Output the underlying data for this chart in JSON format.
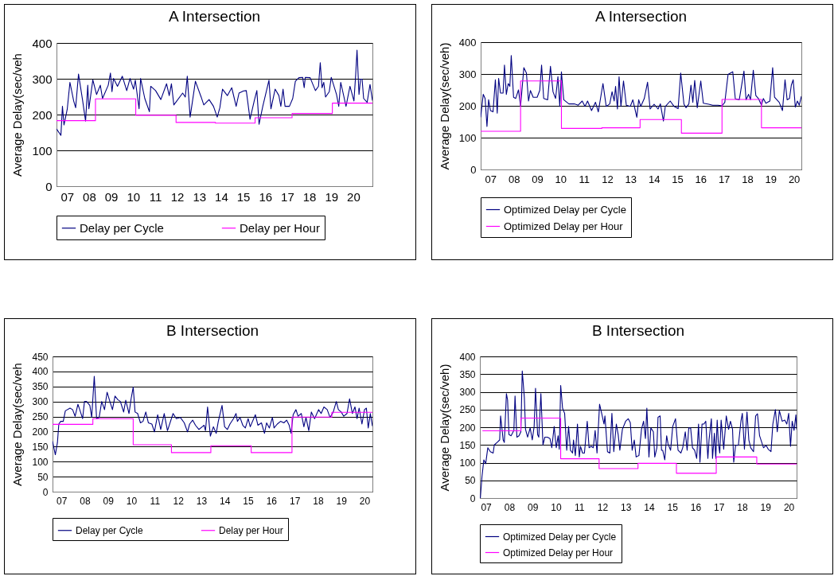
{
  "chart_data": [
    {
      "type": "line",
      "title": "A Intersection",
      "ylabel": "Average Delay(sec/veh",
      "xlim": [
        6.52,
        20.87
      ],
      "xticks": [
        {
          "value": 7,
          "label": "07"
        },
        {
          "value": 8,
          "label": "08"
        },
        {
          "value": 9,
          "label": "09"
        },
        10,
        11,
        12,
        13,
        14,
        15,
        16,
        17,
        18,
        19,
        20
      ],
      "ylim": [
        0,
        400
      ],
      "yticks": [
        0,
        100,
        200,
        300,
        400
      ],
      "grid": "y",
      "legend": "bottom",
      "series": [
        {
          "name": "Delay per Cycle",
          "color": "#000080",
          "x": [
            6.52,
            6.72,
            6.79,
            6.86,
            7.01,
            7.13,
            7.3,
            7.39,
            7.52,
            7.7,
            7.84,
            7.94,
            7.99,
            8.17,
            8.34,
            8.51,
            8.61,
            8.87,
            8.97,
            9.04,
            9.11,
            9.29,
            9.51,
            9.71,
            9.86,
            10.02,
            10.1,
            10.27,
            10.34,
            10.53,
            10.74,
            10.8,
            11.02,
            11.26,
            11.52,
            11.64,
            11.74,
            11.85,
            12.25,
            12.37,
            12.46,
            12.59,
            12.83,
            13.09,
            13.21,
            13.45,
            13.65,
            13.82,
            13.94,
            14.06,
            14.28,
            14.48,
            14.68,
            14.81,
            15.02,
            15.14,
            15.31,
            15.5,
            15.62,
            15.72,
            15.89,
            16.17,
            16.26,
            16.45,
            16.62,
            16.71,
            16.81,
            16.9,
            17.1,
            17.25,
            17.37,
            17.53,
            17.7,
            17.77,
            17.82,
            18.04,
            18.28,
            18.42,
            18.5,
            18.58,
            18.66,
            18.74,
            18.91,
            19.0,
            19.24,
            19.34,
            19.43,
            19.67,
            19.85,
            20.03,
            20.11,
            20.17,
            20.26,
            20.33,
            20.4,
            20.47,
            20.63,
            20.76,
            20.87
          ],
          "values": [
            160,
            142,
            223,
            171,
            216,
            290,
            238,
            219,
            313,
            242,
            182,
            282,
            216,
            297,
            256,
            282,
            245,
            282,
            316,
            264,
            301,
            279,
            307,
            267,
            301,
            271,
            296,
            216,
            301,
            245,
            208,
            279,
            267,
            242,
            286,
            253,
            286,
            227,
            260,
            249,
            307,
            193,
            293,
            249,
            227,
            242,
            223,
            193,
            219,
            271,
            253,
            275,
            223,
            260,
            266,
            267,
            187,
            238,
            267,
            173,
            223,
            296,
            216,
            271,
            253,
            223,
            271,
            223,
            223,
            245,
            293,
            303,
            304,
            275,
            304,
            303,
            267,
            279,
            345,
            275,
            290,
            249,
            264,
            304,
            256,
            223,
            290,
            223,
            279,
            238,
            312,
            380,
            256,
            299,
            299,
            245,
            234,
            284,
            239
          ]
        },
        {
          "name": "Delay per Hour",
          "color": "#ff00ff",
          "type": "step",
          "x": [
            6.52,
            8.29,
            10.12,
            11.95,
            13.74,
            15.54,
            17.22,
            19.05,
            20.87
          ],
          "values": [
            183,
            244,
            198,
            178,
            176,
            191,
            203,
            232,
            232
          ]
        }
      ]
    },
    {
      "type": "line",
      "title": "A Intersection",
      "ylabel": "Average Delay(sec/veh)",
      "xlim": [
        6.58,
        20.32
      ],
      "xticks": [
        {
          "value": 7,
          "label": "07"
        },
        {
          "value": 8,
          "label": "08"
        },
        {
          "value": 9,
          "label": "09"
        },
        10,
        11,
        12,
        13,
        14,
        15,
        16,
        17,
        18,
        19,
        20
      ],
      "ylim": [
        0,
        400
      ],
      "yticks": [
        0,
        100,
        200,
        300,
        400
      ],
      "grid": "y",
      "legend": "bottom",
      "series": [
        {
          "name": "Optimized Delay per Cycle",
          "color": "#000080",
          "x": [
            6.58,
            6.69,
            6.77,
            6.85,
            6.92,
            7.0,
            7.11,
            7.21,
            7.29,
            7.35,
            7.43,
            7.54,
            7.6,
            7.68,
            7.76,
            7.83,
            7.89,
            7.99,
            8.08,
            8.2,
            8.29,
            8.43,
            8.54,
            8.63,
            8.71,
            8.83,
            9.0,
            9.11,
            9.19,
            9.28,
            9.45,
            9.57,
            9.68,
            9.79,
            9.89,
            9.97,
            10.04,
            10.14,
            10.36,
            10.59,
            10.76,
            10.93,
            11.05,
            11.16,
            11.33,
            11.5,
            11.62,
            11.82,
            11.96,
            12.11,
            12.21,
            12.3,
            12.36,
            12.44,
            12.51,
            12.59,
            12.7,
            12.82,
            12.99,
            13.1,
            13.27,
            13.35,
            13.44,
            13.59,
            13.73,
            13.84,
            14.01,
            14.18,
            14.28,
            14.41,
            14.49,
            14.7,
            14.87,
            15.04,
            15.15,
            15.29,
            15.38,
            15.5,
            15.59,
            15.67,
            15.75,
            15.86,
            16.01,
            16.12,
            16.35,
            16.52,
            16.75,
            16.92,
            17.04,
            17.18,
            17.38,
            17.49,
            17.66,
            17.86,
            17.95,
            18.06,
            18.14,
            18.26,
            18.37,
            18.48,
            18.61,
            18.69,
            18.8,
            18.97,
            19.09,
            19.17,
            19.37,
            19.51,
            19.62,
            19.71,
            19.81,
            19.89,
            19.97,
            20.06,
            20.15,
            20.23,
            20.32
          ],
          "values": [
            164,
            236,
            223,
            135,
            219,
            185,
            181,
            282,
            177,
            286,
            240,
            240,
            328,
            236,
            270,
            261,
            358,
            227,
            223,
            250,
            198,
            320,
            303,
            215,
            248,
            227,
            227,
            248,
            328,
            223,
            219,
            324,
            244,
            223,
            292,
            198,
            307,
            219,
            206,
            206,
            202,
            215,
            198,
            215,
            185,
            211,
            181,
            270,
            198,
            206,
            244,
            215,
            261,
            190,
            291,
            198,
            278,
            202,
            198,
            219,
            164,
            219,
            198,
            223,
            274,
            190,
            205,
            190,
            206,
            152,
            198,
            215,
            198,
            191,
            303,
            205,
            194,
            206,
            265,
            211,
            280,
            194,
            278,
            208,
            205,
            202,
            202,
            200,
            211,
            299,
            307,
            222,
            219,
            309,
            219,
            236,
            219,
            312,
            232,
            223,
            202,
            223,
            208,
            215,
            320,
            227,
            211,
            185,
            282,
            219,
            223,
            265,
            282,
            196,
            215,
            202,
            230
          ]
        },
        {
          "name": "Optimized Delay per Hour",
          "color": "#ff00ff",
          "type": "step",
          "x": [
            6.58,
            8.29,
            10.04,
            11.77,
            13.41,
            15.18,
            16.92,
            18.61,
            20.32
          ],
          "values": [
            120,
            278,
            129,
            131,
            157,
            114,
            220,
            131,
            131
          ]
        }
      ]
    },
    {
      "type": "line",
      "title": "B Intersection",
      "ylabel": "Average Delay(sec/veh",
      "xlim": [
        6.62,
        20.34
      ],
      "xticks": [
        {
          "value": 7,
          "label": "07"
        },
        {
          "value": 8,
          "label": "08"
        },
        {
          "value": 9,
          "label": "09"
        },
        10,
        11,
        12,
        13,
        14,
        15,
        16,
        17,
        18,
        19,
        20
      ],
      "ylim": [
        0,
        450
      ],
      "yticks": [
        0,
        50,
        100,
        150,
        200,
        250,
        300,
        350,
        400,
        450
      ],
      "grid": "y",
      "legend": "bottom",
      "series": [
        {
          "name": "Delay per Cycle",
          "color": "#000080",
          "x": [
            6.62,
            6.74,
            6.83,
            6.89,
            6.97,
            7.08,
            7.17,
            7.37,
            7.48,
            7.59,
            7.71,
            7.82,
            7.91,
            7.99,
            8.08,
            8.22,
            8.3,
            8.41,
            8.51,
            8.62,
            8.73,
            8.85,
            8.96,
            9.08,
            9.19,
            9.3,
            9.42,
            9.53,
            9.67,
            9.76,
            9.9,
            9.99,
            10.08,
            10.16,
            10.27,
            10.39,
            10.5,
            10.62,
            10.73,
            10.88,
            10.99,
            11.13,
            11.26,
            11.41,
            11.55,
            11.79,
            11.93,
            12.1,
            12.27,
            12.41,
            12.5,
            12.63,
            12.75,
            12.9,
            13.12,
            13.18,
            13.27,
            13.39,
            13.52,
            13.64,
            13.73,
            13.89,
            14.0,
            14.12,
            14.23,
            14.38,
            14.49,
            14.55,
            14.66,
            14.78,
            14.89,
            15.01,
            15.1,
            15.32,
            15.43,
            15.58,
            15.71,
            15.8,
            15.92,
            16.05,
            16.12,
            16.26,
            16.4,
            16.54,
            16.66,
            16.77,
            16.85,
            16.94,
            17.06,
            17.15,
            17.29,
            17.4,
            17.49,
            17.61,
            17.72,
            17.86,
            18.03,
            18.14,
            18.26,
            18.4,
            18.52,
            18.66,
            18.79,
            18.88,
            19.0,
            19.11,
            19.25,
            19.36,
            19.48,
            19.59,
            19.68,
            19.77,
            19.89,
            20.0,
            20.08,
            20.16,
            20.25,
            20.34
          ],
          "values": [
            168,
            123,
            163,
            225,
            234,
            234,
            269,
            278,
            273,
            251,
            291,
            265,
            243,
            300,
            300,
            287,
            247,
            384,
            243,
            247,
            300,
            273,
            331,
            300,
            273,
            318,
            306,
            300,
            265,
            304,
            260,
            309,
            348,
            265,
            260,
            229,
            234,
            265,
            229,
            225,
            199,
            256,
            207,
            260,
            203,
            260,
            243,
            247,
            229,
            199,
            225,
            238,
            221,
            207,
            221,
            203,
            282,
            185,
            216,
            194,
            234,
            287,
            216,
            207,
            225,
            243,
            260,
            234,
            247,
            221,
            212,
            243,
            216,
            256,
            221,
            229,
            194,
            229,
            212,
            247,
            212,
            225,
            234,
            229,
            238,
            221,
            194,
            256,
            273,
            251,
            260,
            216,
            247,
            203,
            265,
            243,
            273,
            260,
            282,
            273,
            247,
            265,
            300,
            273,
            265,
            251,
            260,
            309,
            260,
            282,
            243,
            278,
            225,
            273,
            278,
            212,
            260,
            218
          ]
        },
        {
          "name": "Delay per Hour",
          "color": "#ff00ff",
          "type": "step",
          "x": [
            6.62,
            8.35,
            10.08,
            11.72,
            13.41,
            15.14,
            16.89,
            18.6,
            20.34
          ],
          "values": [
            224,
            243,
            156,
            130,
            153,
            130,
            248,
            264,
            264
          ]
        }
      ]
    },
    {
      "type": "line",
      "title": "B Intersection",
      "ylabel": "Average Delay(sec/veh)",
      "xlim": [
        6.74,
        20.34
      ],
      "xticks": [
        {
          "value": 7,
          "label": "07"
        },
        {
          "value": 8,
          "label": "08"
        },
        {
          "value": 9,
          "label": "09"
        },
        10,
        11,
        12,
        13,
        14,
        15,
        16,
        17,
        18,
        19,
        20
      ],
      "ylim": [
        0,
        400
      ],
      "yticks": [
        0,
        50,
        100,
        150,
        200,
        250,
        300,
        350,
        400
      ],
      "grid": "y",
      "legend": "bottom",
      "series": [
        {
          "name": "Optimized Delay per Cycle",
          "color": "#000080",
          "x": [
            6.76,
            6.83,
            6.91,
            6.99,
            7.08,
            7.19,
            7.31,
            7.36,
            7.48,
            7.59,
            7.63,
            7.74,
            7.79,
            7.88,
            7.93,
            7.99,
            8.08,
            8.2,
            8.25,
            8.33,
            8.42,
            8.5,
            8.56,
            8.65,
            8.7,
            8.79,
            8.9,
            8.99,
            9.07,
            9.13,
            9.22,
            9.27,
            9.36,
            9.45,
            9.53,
            9.64,
            9.75,
            9.83,
            9.93,
            10.02,
            10.1,
            10.15,
            10.21,
            10.29,
            10.38,
            10.47,
            10.55,
            10.63,
            10.72,
            10.76,
            10.84,
            10.93,
            11.01,
            11.06,
            11.15,
            11.23,
            11.35,
            11.43,
            11.52,
            11.61,
            11.69,
            11.77,
            11.88,
            11.97,
            12.07,
            12.11,
            12.22,
            12.32,
            12.41,
            12.49,
            12.6,
            12.68,
            12.75,
            12.86,
            13.0,
            13.11,
            13.2,
            13.28,
            13.37,
            13.45,
            13.57,
            13.68,
            13.77,
            13.85,
            13.91,
            14.0,
            14.08,
            14.19,
            14.25,
            14.34,
            14.39,
            14.48,
            14.54,
            14.59,
            14.68,
            14.76,
            14.82,
            14.93,
            15.02,
            15.14,
            15.25,
            15.37,
            15.45,
            15.56,
            15.64,
            15.71,
            15.79,
            15.87,
            15.96,
            16.05,
            16.13,
            16.19,
            16.28,
            16.36,
            16.44,
            16.53,
            16.58,
            16.68,
            16.73,
            16.81,
            16.87,
            16.93,
            16.98,
            17.04,
            17.1,
            17.21,
            17.32,
            17.42,
            17.5,
            17.59,
            17.64,
            17.72,
            17.84,
            17.95,
            18.01,
            18.1,
            18.21,
            18.29,
            18.37,
            18.49,
            18.58,
            18.66,
            18.75,
            18.92,
            19.03,
            19.12,
            19.24,
            19.32,
            19.43,
            19.51,
            19.6,
            19.72,
            19.83,
            19.92,
            20.0,
            20.08,
            20.15,
            20.23,
            20.31,
            20.34
          ],
          "values": [
            0,
            60,
            108,
            97,
            142,
            131,
            127,
            150,
            157,
            164,
            232,
            164,
            157,
            295,
            277,
            179,
            176,
            191,
            288,
            172,
            176,
            187,
            359,
            284,
            194,
            172,
            198,
            164,
            202,
            310,
            179,
            172,
            295,
            150,
            172,
            172,
            168,
            142,
            202,
            142,
            176,
            138,
            318,
            254,
            239,
            135,
            202,
            135,
            127,
            164,
            120,
            209,
            116,
            146,
            127,
            127,
            217,
            142,
            146,
            142,
            191,
            127,
            265,
            239,
            209,
            232,
            131,
            127,
            239,
            131,
            209,
            179,
            135,
            194,
            217,
            224,
            213,
            135,
            164,
            116,
            120,
            194,
            217,
            168,
            254,
            116,
            198,
            187,
            116,
            142,
            228,
            232,
            135,
            135,
            108,
            176,
            153,
            135,
            202,
            224,
            135,
            127,
            142,
            187,
            135,
            198,
            198,
            142,
            135,
            112,
            209,
            101,
            209,
            209,
            217,
            112,
            164,
            224,
            112,
            183,
            112,
            220,
            157,
            127,
            220,
            138,
            232,
            194,
            217,
            194,
            101,
            149,
            149,
            217,
            239,
            138,
            243,
            164,
            142,
            131,
            232,
            238,
            176,
            142,
            149,
            138,
            131,
            209,
            250,
            187,
            247,
            217,
            220,
            209,
            239,
            146,
            217,
            191,
            235,
            194
          ]
        },
        {
          "name": "Optimized Delay per Hour",
          "color": "#ff00ff",
          "type": "step",
          "x": [
            6.85,
            8.5,
            10.21,
            11.86,
            13.53,
            15.18,
            16.89,
            18.63,
            20.34
          ],
          "values": [
            190,
            226,
            111,
            83,
            98,
            70,
            116,
            96,
            96
          ]
        }
      ]
    }
  ]
}
